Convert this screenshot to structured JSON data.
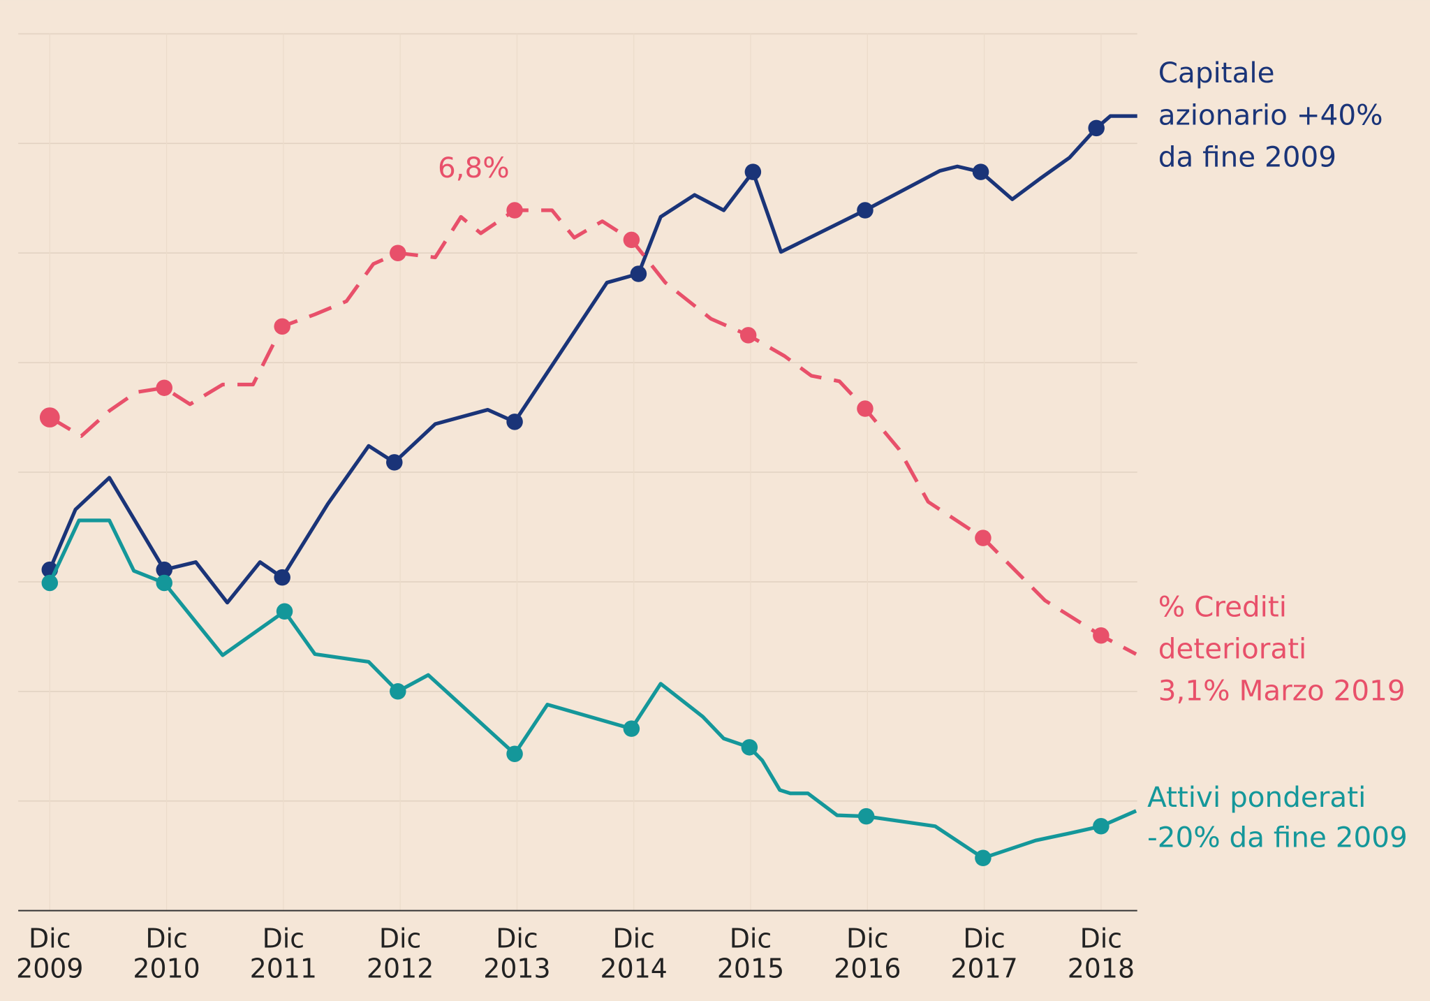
{
  "chart_data": {
    "type": "line",
    "xlim": [
      -0.27,
      9.31
    ],
    "xticks": [
      {
        "value": 0,
        "label": "Dic 2009"
      },
      {
        "value": 1,
        "label": "Dic 2010"
      },
      {
        "value": 2,
        "label": "Dic 2011"
      },
      {
        "value": 3,
        "label": "Dic 2012"
      },
      {
        "value": 4,
        "label": "Dic 2013"
      },
      {
        "value": 5,
        "label": "Dic 2014"
      },
      {
        "value": 6,
        "label": "Dic 2015"
      },
      {
        "value": 7,
        "label": "Dic 2016"
      },
      {
        "value": 8,
        "label": "Dic 2017"
      },
      {
        "value": 9,
        "label": "Dic 2018"
      }
    ],
    "ylim": [
      0,
      8
    ],
    "yticks": [
      1,
      2,
      3,
      4,
      5,
      6,
      7,
      8
    ],
    "grid": true,
    "annotations": [
      {
        "text": "6,8%",
        "color": "#e8506a"
      }
    ],
    "series": [
      {
        "name": [
          "Capitale",
          "azionario +40%",
          "da fine 2009"
        ],
        "color": "#1a3478",
        "dashed": false,
        "x": [
          0,
          0.22,
          0.51,
          0.98,
          1.25,
          1.52,
          1.8,
          1.99,
          2.38,
          2.73,
          2.95,
          3.3,
          3.75,
          3.98,
          4.77,
          5.04,
          5.23,
          5.52,
          5.77,
          6.02,
          6.26,
          6.98,
          7.62,
          7.77,
          7.97,
          8.24,
          8.48,
          8.73,
          8.96,
          9.08,
          9.31
        ],
        "values": [
          3.11,
          3.66,
          3.95,
          3.11,
          3.18,
          2.81,
          3.18,
          3.04,
          3.71,
          4.24,
          4.09,
          4.44,
          4.57,
          4.46,
          5.73,
          5.81,
          6.33,
          6.53,
          6.39,
          6.74,
          6.01,
          6.39,
          6.75,
          6.79,
          6.74,
          6.49,
          6.68,
          6.87,
          7.14,
          7.25,
          7.25
        ]
      },
      {
        "name": [
          "% Crediti",
          "deteriorati",
          "3,1% Marzo 2019"
        ],
        "color": "#e8506a",
        "dashed": true,
        "x": [
          0,
          0.27,
          0.51,
          0.74,
          0.98,
          1.2,
          1.48,
          1.74,
          1.99,
          2.27,
          2.54,
          2.77,
          2.98,
          3.3,
          3.52,
          3.69,
          3.98,
          4.3,
          4.49,
          4.73,
          4.98,
          5.27,
          5.66,
          5.98,
          6.29,
          6.52,
          6.76,
          6.98,
          7.27,
          7.52,
          7.99,
          8.52,
          9.0,
          9.3
        ],
        "values": [
          4.5,
          4.33,
          4.56,
          4.73,
          4.77,
          4.62,
          4.8,
          4.8,
          5.33,
          5.44,
          5.56,
          5.9,
          6.0,
          5.96,
          6.33,
          6.18,
          6.39,
          6.39,
          6.14,
          6.29,
          6.12,
          5.73,
          5.4,
          5.25,
          5.06,
          4.88,
          4.83,
          4.58,
          4.21,
          3.73,
          3.4,
          2.83,
          2.51,
          2.34
        ]
      },
      {
        "name": [
          "Attivi ponderati",
          "-20% da fine 2009"
        ],
        "color": "#14979a",
        "dashed": false,
        "x": [
          0,
          0.25,
          0.51,
          0.72,
          0.98,
          1.48,
          2.01,
          2.27,
          2.73,
          2.98,
          3.24,
          3.98,
          4.26,
          4.98,
          5.23,
          5.59,
          5.77,
          5.99,
          6.1,
          6.25,
          6.34,
          6.49,
          6.74,
          6.99,
          7.58,
          7.99,
          8.44,
          8.75,
          9.0,
          9.3
        ],
        "values": [
          2.99,
          3.56,
          3.56,
          3.1,
          2.99,
          2.33,
          2.73,
          2.34,
          2.27,
          2.0,
          2.15,
          1.43,
          1.88,
          1.66,
          2.07,
          1.77,
          1.57,
          1.49,
          1.37,
          1.1,
          1.07,
          1.07,
          0.87,
          0.86,
          0.77,
          0.48,
          0.64,
          0.71,
          0.77,
          0.91
        ]
      }
    ]
  }
}
